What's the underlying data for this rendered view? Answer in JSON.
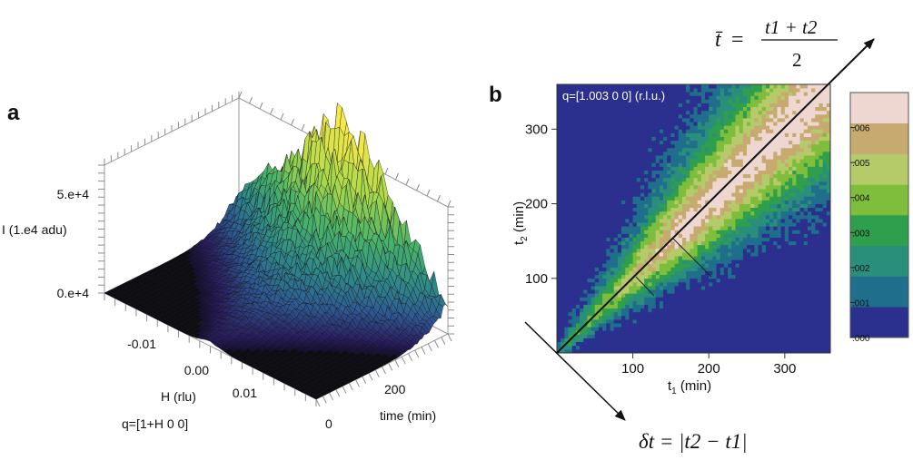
{
  "chart_data": [
    {
      "panel": "a",
      "type": "surface3d",
      "zlabel": "I (1.e4 adu)",
      "z_ticks": [
        "0.e+4",
        "5.e+4"
      ],
      "xlabel": "H (rlu)",
      "x_ticks": [
        "-0.01",
        "0.00",
        "0.01"
      ],
      "ylabel": "time (min)",
      "y_ticks": [
        "0",
        "200"
      ],
      "annotation": "q=[1+H 0 0]",
      "peak": {
        "H": 0.0,
        "time_min": 300,
        "I": 58000.0
      },
      "colormap": [
        "#000000",
        "#2a1d63",
        "#2e5a94",
        "#2f8a88",
        "#47b26a",
        "#a9d94a",
        "#f5e84a"
      ]
    },
    {
      "panel": "b",
      "type": "heatmap",
      "annotation": "q=[1.003 0 0] (r.l.u.)",
      "xlabel_main": "t",
      "xlabel_sub": "1",
      "xlabel_unit": " (min)",
      "ylabel_main": "t",
      "ylabel_sub": "2",
      "ylabel_unit": " (min)",
      "x_ticks": [
        100,
        200,
        300
      ],
      "y_ticks": [
        100,
        200,
        300
      ],
      "xlim": [
        0,
        360
      ],
      "ylim": [
        0,
        360
      ],
      "colorbar": {
        "ticks": [
          ".000",
          ".001",
          ".002",
          ".003",
          ".004",
          ".005",
          ".006"
        ],
        "range": [
          0,
          0.007
        ],
        "colors": [
          "#2b2f8e",
          "#1f6e8c",
          "#2a8f7a",
          "#2f9e4d",
          "#7fbd3c",
          "#b5cb6a",
          "#c6aa6f",
          "#eed7d0"
        ]
      },
      "diagonal_label_lhs": "t̄",
      "diagonal_label_num": "t1 + t2",
      "diagonal_label_den": "2",
      "antidiagonal_label": "δt = |t2 − t1|"
    }
  ],
  "panel_labels": {
    "a": "a",
    "b": "b"
  }
}
